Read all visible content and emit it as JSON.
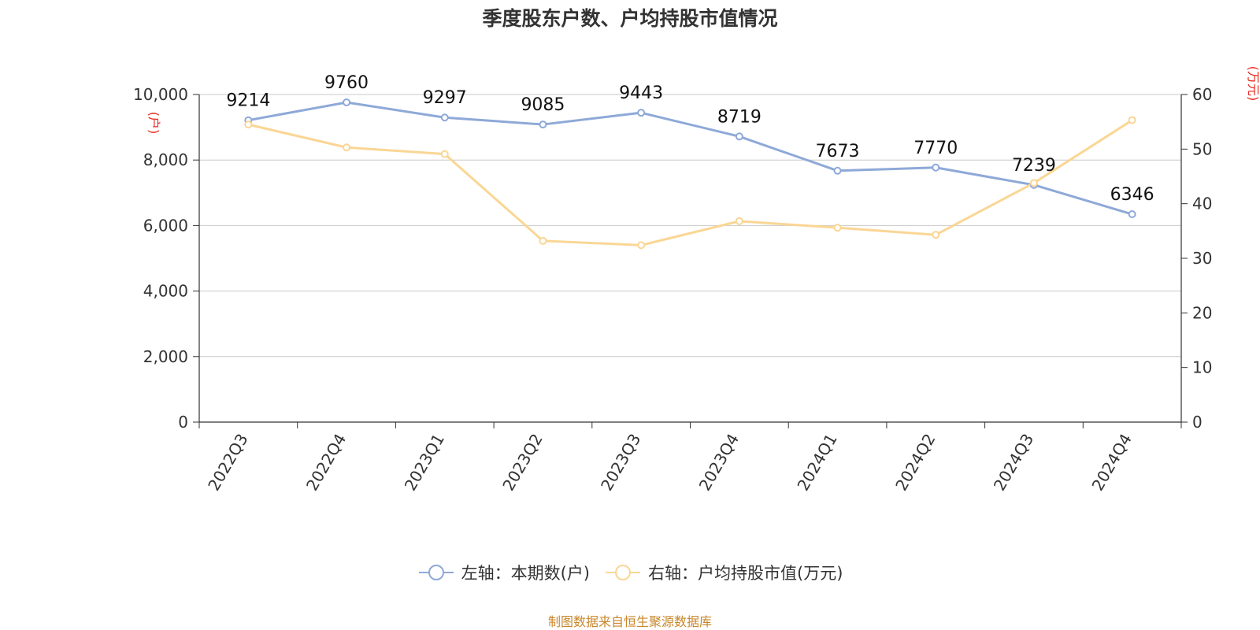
{
  "chart_data": {
    "type": "line",
    "title": "季度股东户数、户均持股市值情况",
    "categories": [
      "2022Q3",
      "2022Q4",
      "2023Q1",
      "2023Q2",
      "2023Q3",
      "2023Q4",
      "2024Q1",
      "2024Q2",
      "2024Q3",
      "2024Q4"
    ],
    "series": [
      {
        "name": "左轴：本期数(户)",
        "axis": "left",
        "color": "#8ea9d8",
        "values": [
          9214,
          9760,
          9297,
          9085,
          9443,
          8719,
          7673,
          7770,
          7239,
          6346
        ],
        "labels": [
          "9214",
          "9760",
          "9297",
          "9085",
          "9443",
          "8719",
          "7673",
          "7770",
          "7239",
          "6346"
        ]
      },
      {
        "name": "右轴：户均持股市值(万元)",
        "axis": "right",
        "color": "#fad694",
        "values": [
          54.5,
          50.3,
          49.1,
          33.2,
          32.4,
          36.8,
          35.6,
          34.3,
          43.8,
          55.3
        ]
      }
    ],
    "y_left": {
      "label": "(户)",
      "ylim": [
        0,
        10000
      ],
      "ticks": [
        "0",
        "2,000",
        "4,000",
        "6,000",
        "8,000",
        "10,000"
      ]
    },
    "y_right": {
      "label": "(万元)",
      "ylim": [
        0,
        60
      ],
      "ticks": [
        "0",
        "10",
        "20",
        "30",
        "40",
        "50",
        "60"
      ]
    },
    "grid": true,
    "legend_position": "bottom-center",
    "axis_label_color": "#e8281e"
  },
  "source_note": "制图数据来自恒生聚源数据库"
}
